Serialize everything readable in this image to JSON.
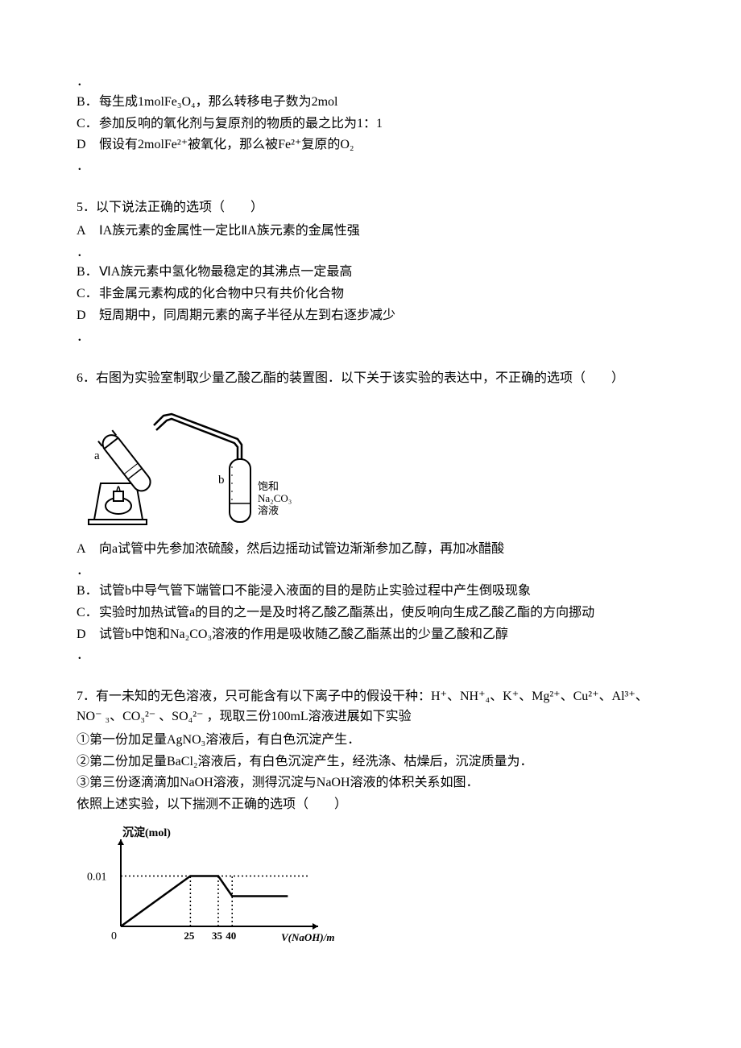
{
  "q4": {
    "dot1": "．",
    "options": {
      "B": {
        "label": "B．",
        "text": "每生成1molFe₃O₄，那么转移电子数为2mol"
      },
      "C": {
        "label": "C．",
        "text": "参加反响的氧化剂与复原剂的物质的最之比为1：1"
      },
      "D": {
        "label": "D",
        "text": "假设有2molFe²⁺被氧化，那么被Fe²⁺复原的O₂"
      }
    },
    "dot2": "．"
  },
  "q5": {
    "stem": "5．以下说法正确的选项（　　）",
    "options": {
      "A": {
        "label": "A",
        "text": "ⅠA族元素的金属性一定比ⅡA族元素的金属性强"
      },
      "B": {
        "label": "B．",
        "text": "ⅥA族元素中氢化物最稳定的其沸点一定最高"
      },
      "C": {
        "label": "C．",
        "text": "非金属元素构成的化合物中只有共价化合物"
      },
      "D": {
        "label": "D",
        "text": "短周期中，同周期元素的离子半径从左到右逐步减少"
      }
    },
    "dot1": "．",
    "dot2": "．"
  },
  "q6": {
    "stem": "6．右图为实验室制取少量乙酸乙酯的装置图．以下关于该实验的表达中，不正确的选项（　　）",
    "figure": {
      "label_a": "a",
      "label_b": "b",
      "right_text1": "饱和",
      "right_text2": "Na₂CO₃",
      "right_text3": "溶液",
      "colors": {
        "stroke": "#000000",
        "bg": "#ffffff"
      }
    },
    "options": {
      "A": {
        "label": "A",
        "text": "向a试管中先参加浓硫酸，然后边摇动试管边渐渐参加乙醇，再加冰醋酸"
      },
      "B": {
        "label": "B．",
        "text": "试管b中导气管下端管口不能浸入液面的目的是防止实验过程中产生倒吸现象"
      },
      "C": {
        "label": "C．",
        "text": "实验时加热试管a的目的之一是及时将乙酸乙酯蒸出，使反响向生成乙酸乙酯的方向挪动"
      },
      "D": {
        "label": "D",
        "text": "试管b中饱和Na₂CO₃溶液的作用是吸收随乙酸乙酯蒸出的少量乙酸和乙醇"
      }
    },
    "dot1": "．",
    "dot2": "．"
  },
  "q7": {
    "stem": "7．有一未知的无色溶液，只可能含有以下离子中的假设干种：H⁺、NH⁺₄、K⁺、Mg²⁺、Cu²⁺、Al³⁺、NO⁻ ₃、CO₃²⁻ 、SO₄²⁻ ，现取三份100mL溶液进展如下实验",
    "subs": {
      "s1": "①第一份加足量AgNO₃溶液后，有白色沉淀产生．",
      "s2": "②第二份加足量BaCl₂溶液后，有白色沉淀产生，经洗涤、枯燥后，沉淀质量为．",
      "s3": "③第三份逐滴滴加NaOH溶液，测得沉淀与NaOH溶液的体积关系如图．",
      "s4": "依照上述实验，以下揣测不正确的选项（　　）"
    },
    "chart": {
      "type": "line",
      "y_label": "沉淀(mol)",
      "x_label": "V(NaOH)/mL",
      "y_tick": "0.01",
      "x_origin": "0",
      "x_ticks": [
        "25",
        "35",
        "40"
      ],
      "axis_color": "#000000",
      "dash_color": "#000000",
      "line_color": "#000000",
      "bg": "#ffffff",
      "points": [
        {
          "x": 0,
          "y": 0
        },
        {
          "x": 25,
          "y": 0.01
        },
        {
          "x": 35,
          "y": 0.01
        },
        {
          "x": 40,
          "y": 0.006
        },
        {
          "x": 60,
          "y": 0.006
        }
      ],
      "xlim": [
        0,
        68
      ],
      "ylim": [
        0,
        0.016
      ]
    }
  }
}
